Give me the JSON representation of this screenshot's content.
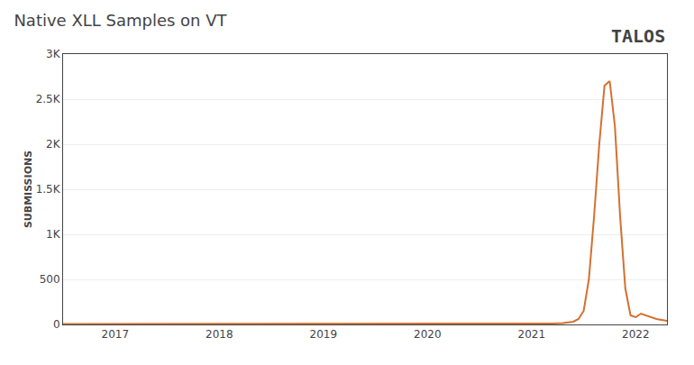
{
  "chart_data": {
    "type": "line",
    "title": "Native XLL Samples on VT",
    "ylabel": "SUBMISSIONS",
    "annotations": [
      "TALOS"
    ],
    "color": "#d47030",
    "grid": true,
    "x": [
      2016.5,
      2016.6,
      2016.7,
      2016.8,
      2016.9,
      2017.0,
      2017.1,
      2017.2,
      2017.3,
      2017.4,
      2017.5,
      2017.6,
      2017.7,
      2017.8,
      2017.9,
      2018.0,
      2018.1,
      2018.2,
      2018.3,
      2018.4,
      2018.5,
      2018.6,
      2018.7,
      2018.8,
      2018.9,
      2019.0,
      2019.1,
      2019.2,
      2019.3,
      2019.4,
      2019.5,
      2019.6,
      2019.7,
      2019.8,
      2019.9,
      2020.0,
      2020.1,
      2020.2,
      2020.3,
      2020.4,
      2020.5,
      2020.6,
      2020.7,
      2020.8,
      2020.9,
      2021.0,
      2021.1,
      2021.2,
      2021.3,
      2021.4,
      2021.45,
      2021.5,
      2021.55,
      2021.6,
      2021.65,
      2021.7,
      2021.75,
      2021.8,
      2021.85,
      2021.9,
      2021.95,
      2022.0,
      2022.05,
      2022.1,
      2022.15,
      2022.2,
      2022.25,
      2022.3
    ],
    "values": [
      5,
      5,
      5,
      8,
      5,
      8,
      5,
      5,
      8,
      5,
      5,
      8,
      5,
      5,
      8,
      5,
      8,
      5,
      5,
      8,
      5,
      5,
      8,
      5,
      5,
      5,
      8,
      5,
      5,
      8,
      5,
      5,
      8,
      5,
      5,
      5,
      8,
      5,
      5,
      8,
      5,
      5,
      8,
      5,
      5,
      5,
      8,
      10,
      15,
      30,
      60,
      150,
      500,
      1200,
      2000,
      2650,
      2700,
      2200,
      1200,
      400,
      100,
      80,
      120,
      100,
      80,
      60,
      50,
      40
    ],
    "xlim": [
      2016.5,
      2022.3
    ],
    "xticks": [
      2017,
      2018,
      2019,
      2020,
      2021,
      2022
    ],
    "ylim": [
      0,
      3000
    ],
    "yticks": [
      0,
      500,
      {
        "value": 1000,
        "label": "1K"
      },
      {
        "value": 1500,
        "label": "1.5K"
      },
      {
        "value": 2000,
        "label": "2K"
      },
      {
        "value": 2500,
        "label": "2.5K"
      },
      {
        "value": 3000,
        "label": "3K"
      }
    ]
  }
}
